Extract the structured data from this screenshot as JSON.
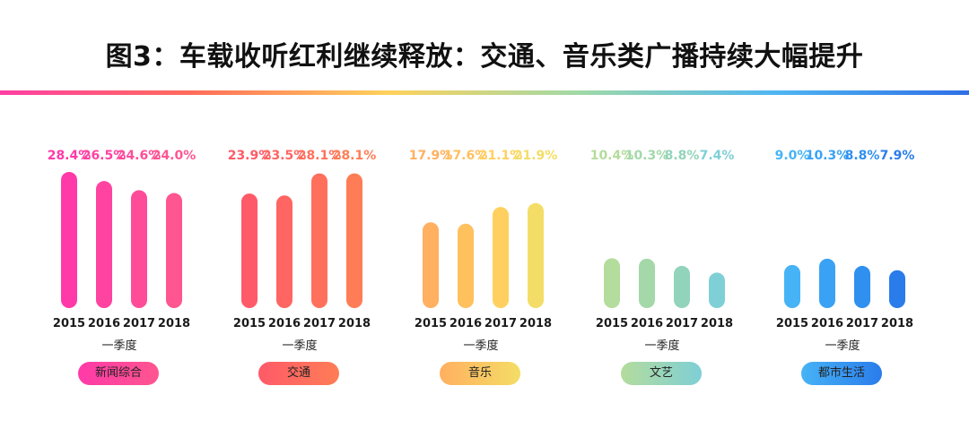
{
  "title": "图3：车载收听红利继续释放：交通、音乐类广播持续大幅提升",
  "rule_gradient": [
    "#ff3fa4",
    "#ff6d5a",
    "#ffd15c",
    "#9fd9a8",
    "#4fb6f2",
    "#2f6fe6"
  ],
  "chart_data": {
    "type": "bar",
    "title": "图3：车载收听红利继续释放：交通、音乐类广播持续大幅提升",
    "categories": [
      "2015",
      "2016",
      "2017",
      "2018"
    ],
    "period_label": "一季度",
    "unit": "%",
    "xlabel": "",
    "ylabel": "",
    "ylim": [
      0,
      30
    ],
    "series": [
      {
        "name": "新闻综合",
        "values": [
          28.4,
          26.5,
          24.6,
          24.0
        ],
        "value_labels": [
          "28.4%",
          "26.5%",
          "24.6%",
          "24.0%"
        ],
        "colors": [
          "#ff3aa8",
          "#ff43a0",
          "#ff4c98",
          "#ff5590"
        ]
      },
      {
        "name": "交通",
        "values": [
          23.9,
          23.5,
          28.1,
          28.1
        ],
        "value_labels": [
          "23.9%",
          "23.5%",
          "28.1%",
          "28.1%"
        ],
        "colors": [
          "#ff5a68",
          "#ff6562",
          "#ff705c",
          "#ff7d56"
        ]
      },
      {
        "name": "音乐",
        "values": [
          17.9,
          17.6,
          21.1,
          21.9
        ],
        "value_labels": [
          "17.9%",
          "17.6%",
          "21.1%",
          "21.9%"
        ],
        "colors": [
          "#ffb060",
          "#ffc05e",
          "#ffd05f",
          "#f4dd66"
        ]
      },
      {
        "name": "文艺",
        "values": [
          10.4,
          10.3,
          8.8,
          7.4
        ],
        "value_labels": [
          "10.4%",
          "10.3%",
          "8.8%",
          "7.4%"
        ],
        "colors": [
          "#b4dc9c",
          "#a4d8a9",
          "#92d4bb",
          "#7fcfd6"
        ]
      },
      {
        "name": "都市生活",
        "values": [
          9.0,
          10.3,
          8.8,
          7.9
        ],
        "value_labels": [
          "9.0%",
          "10.3%",
          "8.8%",
          "7.9%"
        ],
        "colors": [
          "#46b3f6",
          "#3aa2f4",
          "#2f90f0",
          "#2a7ceb"
        ]
      }
    ]
  }
}
